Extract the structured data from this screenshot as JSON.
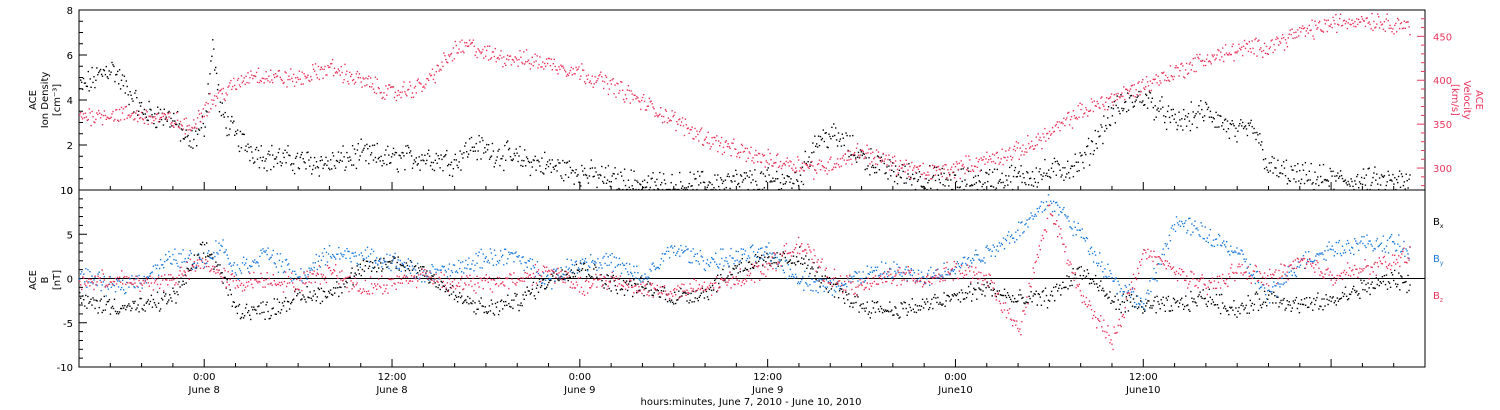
{
  "chart_data": [
    {
      "type": "scatter",
      "panel": "top",
      "ylabel_left": [
        "ACE",
        "Ion Density",
        "[cm⁻³]"
      ],
      "ylabel_right": [
        "ACE",
        "Velocity",
        "[km/s]"
      ],
      "ylim_left": [
        0,
        8
      ],
      "yticks_left": [
        0,
        2,
        4,
        6,
        8
      ],
      "ylim_right": [
        275,
        480
      ],
      "yticks_right": [
        300,
        350,
        400,
        450
      ],
      "xlim": [
        -8,
        78
      ],
      "series": [
        {
          "name": "Ion Density",
          "axis": "left",
          "color": "#000000",
          "x": [
            -8,
            -6,
            -4,
            -2,
            -1,
            0,
            0.5,
            1,
            2,
            3,
            4,
            6,
            8,
            10,
            12,
            14,
            16,
            17,
            18,
            20,
            22,
            24,
            26,
            28,
            30,
            32,
            34,
            36,
            38,
            39,
            40,
            42,
            44,
            46,
            48,
            50,
            52,
            54,
            56,
            58,
            60,
            62,
            64,
            66,
            67,
            68,
            70,
            72,
            74,
            76,
            77
          ],
          "y": [
            4.5,
            5.5,
            3.5,
            3.2,
            2.0,
            3.0,
            6.5,
            3.5,
            2.4,
            1.8,
            1.5,
            1.3,
            1.2,
            1.6,
            1.4,
            1.5,
            1.3,
            2.0,
            1.8,
            1.4,
            1.1,
            0.8,
            0.5,
            0.3,
            0.2,
            0.3,
            0.4,
            0.4,
            0.5,
            2.2,
            2.5,
            1.5,
            0.8,
            0.5,
            0.4,
            0.5,
            0.6,
            0.8,
            1.2,
            3.5,
            4.2,
            3.0,
            3.5,
            2.5,
            2.8,
            1.0,
            0.6,
            0.5,
            0.4,
            0.4,
            0.3
          ]
        },
        {
          "name": "Velocity",
          "axis": "right",
          "color": "#e8365d",
          "x": [
            -8,
            -6,
            -4,
            -2,
            -1,
            0,
            1,
            2,
            3,
            4,
            6,
            8,
            10,
            12,
            14,
            16,
            17,
            18,
            20,
            22,
            24,
            26,
            28,
            30,
            32,
            34,
            36,
            38,
            39,
            40,
            42,
            44,
            46,
            48,
            50,
            52,
            54,
            56,
            58,
            60,
            62,
            64,
            66,
            68,
            70,
            72,
            74,
            76,
            77
          ],
          "y": [
            360,
            362,
            360,
            355,
            345,
            370,
            385,
            395,
            408,
            405,
            402,
            415,
            400,
            385,
            395,
            435,
            440,
            430,
            425,
            420,
            410,
            395,
            375,
            355,
            335,
            320,
            310,
            305,
            300,
            305,
            320,
            305,
            295,
            300,
            310,
            320,
            340,
            365,
            380,
            395,
            410,
            425,
            435,
            440,
            455,
            465,
            470,
            465,
            463
          ]
        }
      ]
    },
    {
      "type": "scatter",
      "panel": "bottom",
      "ylabel": [
        "ACE",
        "B",
        "[nT]"
      ],
      "ylim": [
        -10,
        10
      ],
      "yticks": [
        -10,
        -5,
        0,
        5,
        10
      ],
      "xlim": [
        -8,
        78
      ],
      "legend": "right",
      "series": [
        {
          "name": "Bx",
          "color": "#000000",
          "x": [
            -8,
            -6,
            -4,
            -2,
            0,
            1,
            2,
            4,
            6,
            8,
            10,
            12,
            14,
            16,
            18,
            20,
            22,
            24,
            26,
            28,
            30,
            32,
            34,
            36,
            38,
            40,
            42,
            44,
            46,
            48,
            50,
            52,
            54,
            56,
            58,
            60,
            62,
            64,
            66,
            68,
            70,
            72,
            74,
            76,
            77
          ],
          "y": [
            -2.5,
            -3.0,
            -3.2,
            -2.0,
            3.5,
            1.0,
            -3.5,
            -3.5,
            -2.0,
            -1.5,
            1.0,
            2.0,
            1.0,
            -2.0,
            -3.5,
            -2.5,
            0.0,
            1.5,
            -0.5,
            -1.0,
            -2.0,
            -1.5,
            1.5,
            2.0,
            2.5,
            -1.0,
            -3.0,
            -3.5,
            -3.0,
            -2.0,
            -1.0,
            -2.5,
            -2.0,
            1.0,
            -2.5,
            -3.0,
            -3.0,
            -2.0,
            -3.5,
            -2.0,
            -3.0,
            -2.5,
            -1.0,
            0.0,
            -0.5
          ]
        },
        {
          "name": "By",
          "color": "#1e7bdc",
          "x": [
            -8,
            -6,
            -4,
            -2,
            0,
            1,
            2,
            4,
            6,
            8,
            10,
            12,
            14,
            16,
            18,
            20,
            22,
            24,
            26,
            28,
            30,
            32,
            34,
            36,
            38,
            40,
            42,
            44,
            46,
            48,
            50,
            52,
            54,
            56,
            58,
            60,
            62,
            64,
            66,
            68,
            70,
            72,
            74,
            76,
            77
          ],
          "y": [
            0.5,
            -1.0,
            0.0,
            2.5,
            2.0,
            4.0,
            1.0,
            3.0,
            0.0,
            3.0,
            2.5,
            2.0,
            0.5,
            1.0,
            2.5,
            2.5,
            0.0,
            2.0,
            2.0,
            0.0,
            3.5,
            2.0,
            2.5,
            3.0,
            0.0,
            -1.0,
            0.5,
            1.0,
            0.0,
            1.5,
            3.0,
            5.5,
            9.0,
            5.0,
            0.0,
            -3.0,
            6.5,
            5.0,
            3.0,
            -2.0,
            2.0,
            3.5,
            4.0,
            4.0,
            3.0
          ]
        },
        {
          "name": "Bz",
          "color": "#e8365d",
          "x": [
            -8,
            -6,
            -4,
            -2,
            0,
            1,
            2,
            4,
            6,
            8,
            10,
            12,
            14,
            16,
            18,
            20,
            22,
            24,
            26,
            28,
            30,
            32,
            34,
            36,
            38,
            40,
            42,
            44,
            46,
            48,
            50,
            52,
            54,
            56,
            58,
            60,
            62,
            64,
            66,
            68,
            70,
            72,
            74,
            76,
            77
          ],
          "y": [
            -0.5,
            0.0,
            -0.5,
            0.0,
            2.0,
            0.5,
            -0.5,
            0.0,
            -0.5,
            1.0,
            -1.0,
            -0.5,
            0.5,
            -0.5,
            -0.5,
            0.0,
            1.0,
            -1.0,
            0.0,
            -1.0,
            -1.5,
            -1.0,
            0.0,
            1.5,
            4.0,
            0.0,
            -1.0,
            0.5,
            0.0,
            1.0,
            0.0,
            -6.0,
            8.0,
            -2.0,
            -7.0,
            3.0,
            1.0,
            -1.0,
            1.0,
            0.0,
            2.0,
            0.5,
            1.0,
            2.0,
            3.0
          ]
        }
      ],
      "legend_labels": [
        {
          "base": "B",
          "sub": "x",
          "color": "#000000"
        },
        {
          "base": "B",
          "sub": "y",
          "color": "#1e7bdc"
        },
        {
          "base": "B",
          "sub": "z",
          "color": "#e8365d"
        }
      ]
    }
  ],
  "x_axis": {
    "ticks": [
      {
        "hours": 0,
        "time": "0:00",
        "date": "June 8"
      },
      {
        "hours": 12,
        "time": "12:00",
        "date": "June 8"
      },
      {
        "hours": 24,
        "time": "0:00",
        "date": "June 9"
      },
      {
        "hours": 36,
        "time": "12:00",
        "date": "June 9"
      },
      {
        "hours": 48,
        "time": "0:00",
        "date": "June10"
      },
      {
        "hours": 60,
        "time": "12:00",
        "date": "June10"
      }
    ],
    "minor_step_hours": 2,
    "xlabel": "hours:minutes, June  7, 2010 - June 10, 2010"
  }
}
